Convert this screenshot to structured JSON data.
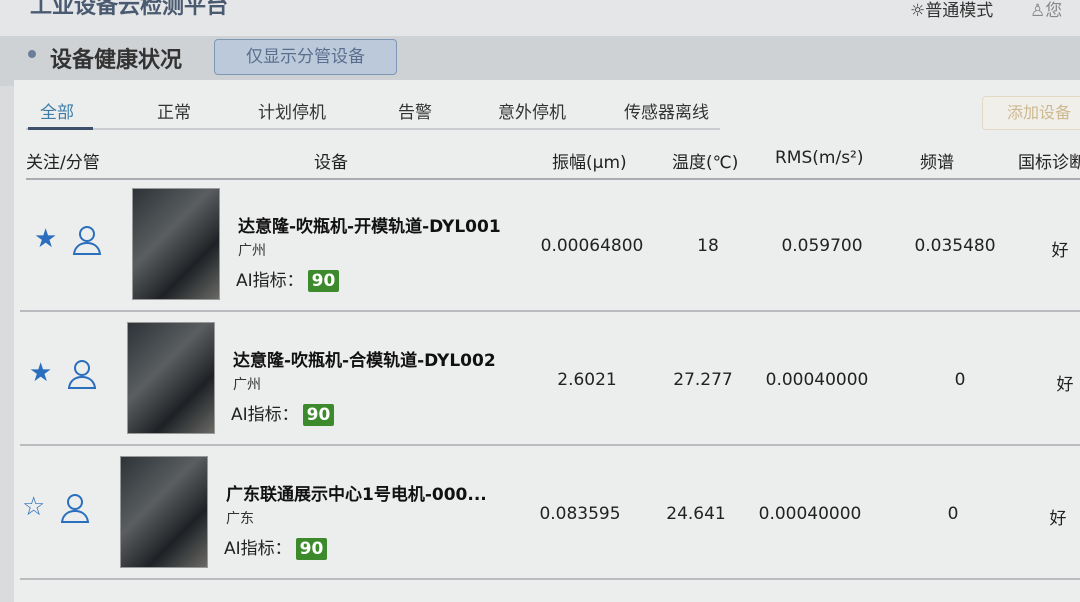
{
  "header": {
    "title": "工业设备云检测平台",
    "mode": "普通模式",
    "user": "您"
  },
  "section": {
    "title": "设备健康状况",
    "filter_button": "仅显示分管设备"
  },
  "tabs": [
    "全部",
    "正常",
    "计划停机",
    "告警",
    "意外停机",
    "传感器离线"
  ],
  "add_button": "添加设备",
  "columns": [
    "关注/分管",
    "设备",
    "振幅(μm)",
    "温度(℃)",
    "RMS(m/s²)",
    "频谱",
    "国标诊断"
  ],
  "ai_label": "AI指标：",
  "rows": [
    {
      "starred": true,
      "name": "达意隆-吹瓶机-开模轨道-DYL001",
      "location": "广州",
      "ai": "90",
      "amplitude": "0.00064800",
      "temperature": "18",
      "rms": "0.059700",
      "spectrum": "0.035480",
      "diagnosis": "好"
    },
    {
      "starred": true,
      "name": "达意隆-吹瓶机-合模轨道-DYL002",
      "location": "广州",
      "ai": "90",
      "amplitude": "2.6021",
      "temperature": "27.277",
      "rms": "0.00040000",
      "spectrum": "0",
      "diagnosis": "好"
    },
    {
      "starred": false,
      "name": "广东联通展示中心1号电机-000...",
      "location": "广东",
      "ai": "90",
      "amplitude": "0.083595",
      "temperature": "24.641",
      "rms": "0.00040000",
      "spectrum": "0",
      "diagnosis": "好"
    }
  ],
  "colors": {
    "accent": "#3d7ca8",
    "star": "#2a6fbd",
    "badge": "#3d8a2c"
  }
}
